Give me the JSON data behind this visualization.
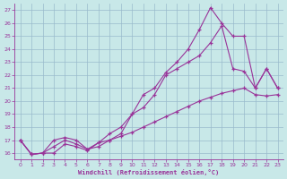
{
  "xlabel": "Windchill (Refroidissement éolien,°C)",
  "background_color": "#c8e8e8",
  "line_color": "#993399",
  "grid_color": "#99bbcc",
  "xlim": [
    -0.5,
    23.5
  ],
  "ylim": [
    15.5,
    27.5
  ],
  "xticks": [
    0,
    1,
    2,
    3,
    4,
    5,
    6,
    7,
    8,
    9,
    10,
    11,
    12,
    13,
    14,
    15,
    16,
    17,
    18,
    19,
    20,
    21,
    22,
    23
  ],
  "yticks": [
    16,
    17,
    18,
    19,
    20,
    21,
    22,
    23,
    24,
    25,
    26,
    27
  ],
  "line1_x": [
    0,
    1,
    2,
    3,
    4,
    5,
    6,
    7,
    8,
    9,
    10,
    11,
    12,
    13,
    14,
    15,
    16,
    17,
    18,
    19,
    20,
    21,
    22,
    23
  ],
  "line1_y": [
    17.0,
    15.9,
    16.0,
    16.0,
    16.7,
    16.5,
    16.2,
    16.8,
    17.0,
    17.3,
    17.6,
    18.0,
    18.4,
    18.8,
    19.2,
    19.6,
    20.0,
    20.3,
    20.6,
    20.8,
    21.0,
    20.5,
    20.4,
    20.5
  ],
  "line2_x": [
    0,
    1,
    2,
    3,
    4,
    5,
    6,
    7,
    8,
    9,
    10,
    11,
    12,
    13,
    14,
    15,
    16,
    17,
    18,
    19,
    20,
    21,
    22,
    23
  ],
  "line2_y": [
    17.0,
    15.9,
    16.0,
    16.5,
    17.0,
    16.7,
    16.3,
    16.8,
    17.5,
    18.0,
    19.0,
    20.5,
    21.0,
    22.2,
    23.0,
    24.0,
    25.5,
    27.2,
    26.0,
    25.0,
    25.0,
    21.0,
    22.5,
    21.0
  ],
  "line3_x": [
    0,
    1,
    2,
    3,
    4,
    5,
    6,
    7,
    8,
    9,
    10,
    11,
    12,
    13,
    14,
    15,
    16,
    17,
    18,
    19,
    20,
    21,
    22,
    23
  ],
  "line3_y": [
    17.0,
    15.9,
    16.0,
    17.0,
    17.2,
    17.0,
    16.3,
    16.5,
    17.0,
    17.5,
    19.0,
    19.5,
    20.5,
    22.0,
    22.5,
    23.0,
    23.5,
    24.5,
    25.8,
    22.5,
    22.3,
    21.0,
    22.5,
    21.0
  ]
}
